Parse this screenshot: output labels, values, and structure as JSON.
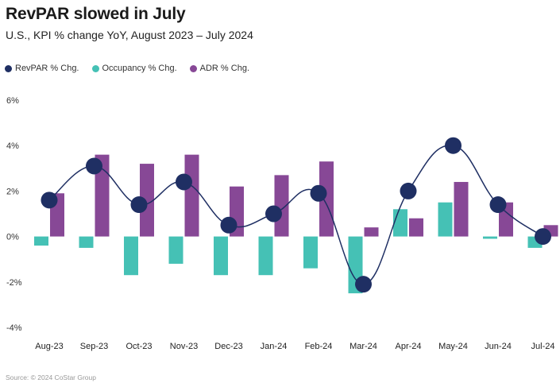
{
  "header": {
    "title": "RevPAR slowed in July",
    "subtitle": "U.S., KPI % change YoY, August 2023 – July 2024"
  },
  "legend": [
    {
      "label": "RevPAR % Chg.",
      "color": "#1f2f63"
    },
    {
      "label": "Occupancy % Chg.",
      "color": "#45c1b5"
    },
    {
      "label": "ADR % Chg.",
      "color": "#874896"
    }
  ],
  "footer": {
    "source": "Source: © 2024 CoStar Group"
  },
  "chart_data": {
    "type": "bar",
    "title": "RevPAR slowed in July",
    "subtitle": "U.S., KPI % change YoY, August 2023 – July 2024",
    "xlabel": "",
    "ylabel": "",
    "ylim": [
      -4,
      6
    ],
    "yticks": [
      6,
      4,
      2,
      0,
      -2,
      -4
    ],
    "ytick_labels": [
      "6%",
      "4%",
      "2%",
      "0%",
      "-2%",
      "-4%"
    ],
    "grid": false,
    "legend_position": "top-left",
    "categories": [
      "Aug-23",
      "Sep-23",
      "Oct-23",
      "Nov-23",
      "Dec-23",
      "Jan-24",
      "Feb-24",
      "Mar-24",
      "Apr-24",
      "May-24",
      "Jun-24",
      "Jul-24"
    ],
    "series": [
      {
        "name": "RevPAR % Chg.",
        "kind": "line-with-markers",
        "color": "#1f2f63",
        "values": [
          1.6,
          3.1,
          1.4,
          2.4,
          0.5,
          1.0,
          1.9,
          -2.1,
          2.0,
          4.0,
          1.4,
          0.0
        ]
      },
      {
        "name": "Occupancy % Chg.",
        "kind": "bar",
        "color": "#45c1b5",
        "values": [
          -0.4,
          -0.5,
          -1.7,
          -1.2,
          -1.7,
          -1.7,
          -1.4,
          -2.5,
          1.2,
          1.5,
          -0.1,
          -0.5
        ]
      },
      {
        "name": "ADR % Chg.",
        "kind": "bar",
        "color": "#874896",
        "values": [
          1.9,
          3.6,
          3.2,
          3.6,
          2.2,
          2.7,
          3.3,
          0.4,
          0.8,
          2.4,
          1.5,
          0.5
        ]
      }
    ]
  }
}
